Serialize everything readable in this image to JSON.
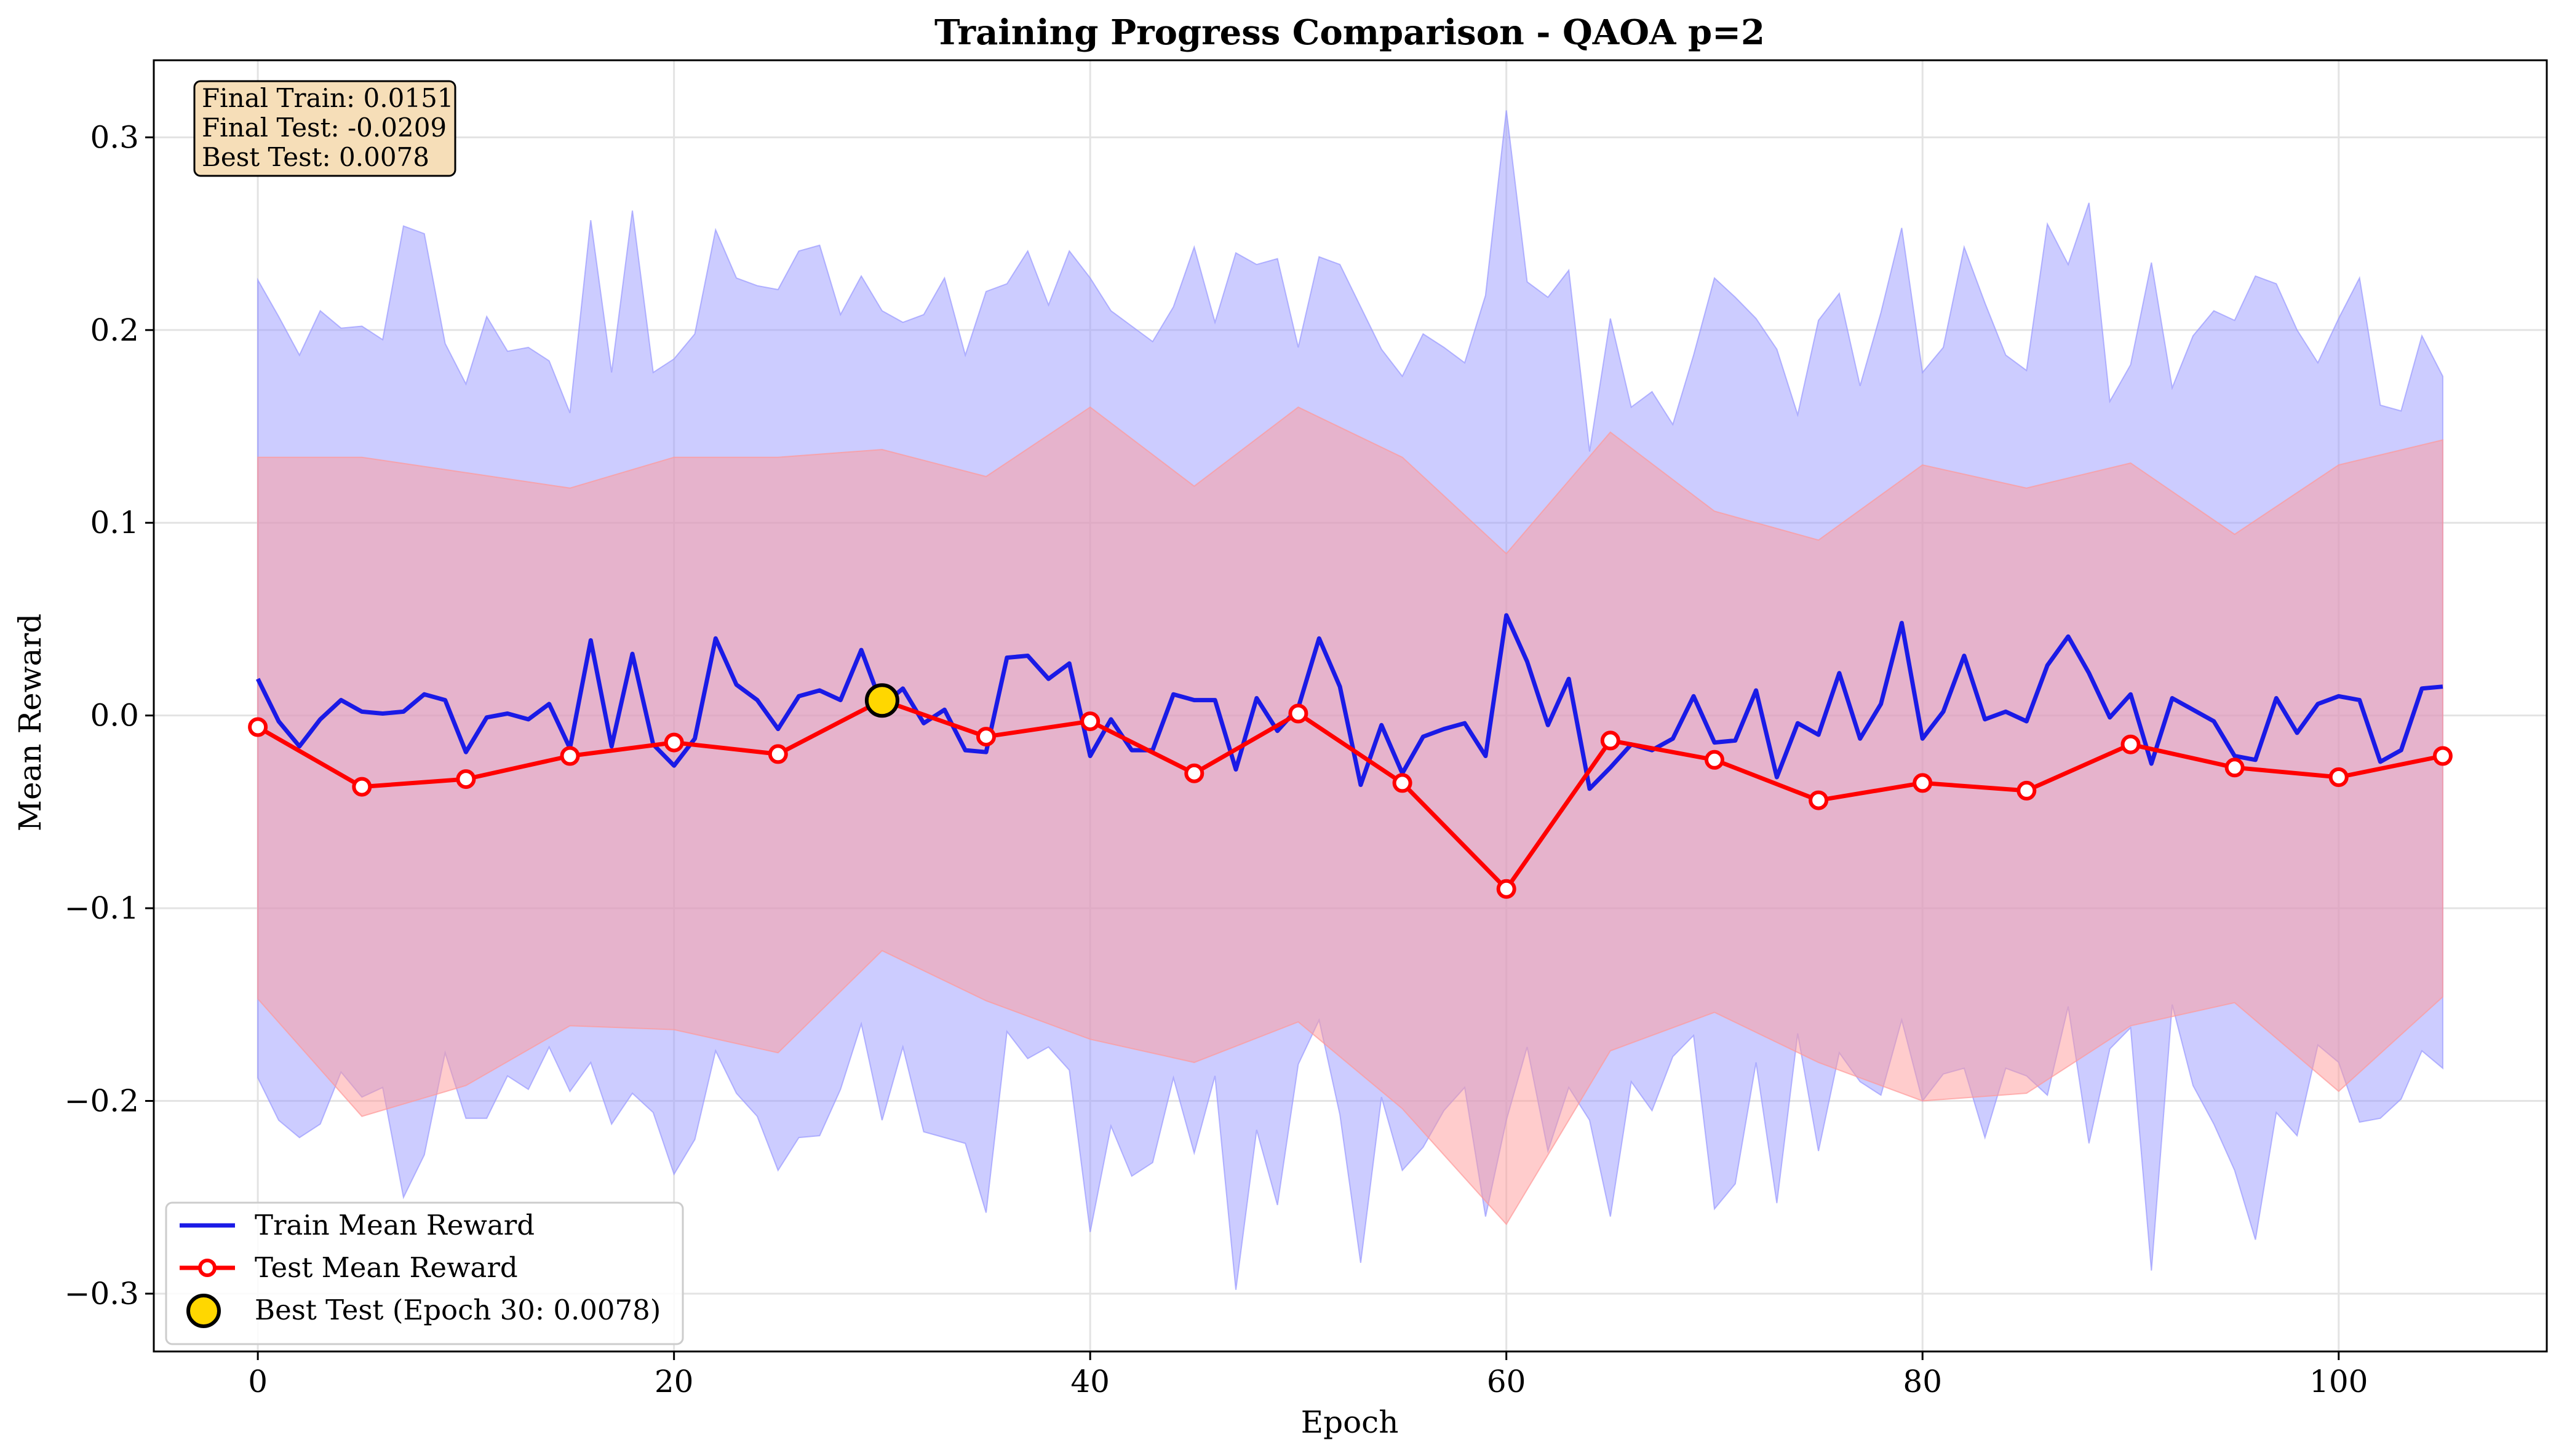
{
  "chart_data": {
    "type": "line",
    "title": "Training Progress Comparison - QAOA p=2",
    "xlabel": "Epoch",
    "ylabel": "Mean Reward",
    "xlim": [
      -5,
      110
    ],
    "ylim": [
      -0.33,
      0.34
    ],
    "xticks": [
      0,
      20,
      40,
      60,
      80,
      100
    ],
    "yticks": [
      -0.3,
      -0.2,
      -0.1,
      0.0,
      0.1,
      0.2,
      0.3
    ],
    "ytick_labels": [
      "−0.3",
      "−0.2",
      "−0.1",
      "0.0",
      "0.1",
      "0.2",
      "0.3"
    ],
    "grid": true,
    "legend_position": "lower-left",
    "colors": {
      "train": "#1a1ae6",
      "test": "#ff0000",
      "best": "#ffd700",
      "train_band": "#9999ff",
      "test_band": "#ff9999"
    },
    "series": [
      {
        "name": "Train Mean Reward",
        "x": [
          0,
          1,
          2,
          3,
          4,
          5,
          6,
          7,
          8,
          9,
          10,
          11,
          12,
          13,
          14,
          15,
          16,
          17,
          18,
          19,
          20,
          21,
          22,
          23,
          24,
          25,
          26,
          27,
          28,
          29,
          30,
          31,
          32,
          33,
          34,
          35,
          36,
          37,
          38,
          39,
          40,
          41,
          42,
          43,
          44,
          45,
          46,
          47,
          48,
          49,
          50,
          51,
          52,
          53,
          54,
          55,
          56,
          57,
          58,
          59,
          60,
          61,
          62,
          63,
          64,
          65,
          66,
          67,
          68,
          69,
          70,
          71,
          72,
          73,
          74,
          75,
          76,
          77,
          78,
          79,
          80,
          81,
          82,
          83,
          84,
          85,
          86,
          87,
          88,
          89,
          90,
          91,
          92,
          93,
          94,
          95,
          96,
          97,
          98,
          99,
          100,
          101,
          102,
          103,
          104,
          105
        ],
        "values": [
          0.019,
          -0.003,
          -0.016,
          -0.002,
          0.008,
          0.002,
          0.001,
          0.002,
          0.011,
          0.008,
          -0.019,
          -0.001,
          0.001,
          -0.002,
          0.006,
          -0.017,
          0.039,
          -0.016,
          0.032,
          -0.015,
          -0.026,
          -0.012,
          0.04,
          0.016,
          0.008,
          -0.007,
          0.01,
          0.013,
          0.008,
          0.034,
          0.005,
          0.014,
          -0.004,
          0.003,
          -0.018,
          -0.019,
          0.03,
          0.031,
          0.019,
          0.027,
          -0.021,
          -0.002,
          -0.018,
          -0.018,
          0.011,
          0.008,
          0.008,
          -0.028,
          0.009,
          -0.008,
          0.004,
          0.04,
          0.015,
          -0.036,
          -0.005,
          -0.03,
          -0.011,
          -0.007,
          -0.004,
          -0.021,
          0.052,
          0.028,
          -0.005,
          0.019,
          -0.038,
          -0.027,
          -0.015,
          -0.018,
          -0.012,
          0.01,
          -0.014,
          -0.013,
          0.013,
          -0.032,
          -0.004,
          -0.01,
          0.022,
          -0.012,
          0.006,
          0.048,
          -0.012,
          0.002,
          0.031,
          -0.002,
          0.002,
          -0.003,
          0.026,
          0.041,
          0.022,
          -0.001,
          0.011,
          -0.025,
          0.009,
          0.003,
          -0.003,
          -0.021,
          -0.023,
          0.009,
          -0.009,
          0.006,
          0.01,
          0.008,
          -0.024,
          -0.018,
          0.014,
          0.015
        ],
        "upper": [
          0.226,
          0.207,
          0.187,
          0.21,
          0.201,
          0.202,
          0.195,
          0.254,
          0.25,
          0.193,
          0.172,
          0.207,
          0.189,
          0.191,
          0.184,
          0.157,
          0.257,
          0.178,
          0.262,
          0.178,
          0.185,
          0.198,
          0.252,
          0.227,
          0.223,
          0.221,
          0.241,
          0.244,
          0.208,
          0.228,
          0.21,
          0.204,
          0.208,
          0.227,
          0.187,
          0.22,
          0.224,
          0.241,
          0.213,
          0.241,
          0.227,
          0.21,
          0.202,
          0.194,
          0.212,
          0.243,
          0.204,
          0.24,
          0.234,
          0.237,
          0.191,
          0.238,
          0.234,
          0.212,
          0.19,
          0.176,
          0.198,
          0.191,
          0.183,
          0.218,
          0.314,
          0.225,
          0.217,
          0.231,
          0.137,
          0.206,
          0.16,
          0.168,
          0.151,
          0.187,
          0.227,
          0.217,
          0.206,
          0.19,
          0.156,
          0.205,
          0.219,
          0.171,
          0.209,
          0.253,
          0.178,
          0.191,
          0.243,
          0.214,
          0.187,
          0.179,
          0.255,
          0.234,
          0.266,
          0.163,
          0.182,
          0.235,
          0.17,
          0.197,
          0.21,
          0.205,
          0.228,
          0.224,
          0.2,
          0.183,
          0.206,
          0.227,
          0.161,
          0.158,
          0.197,
          0.176
        ],
        "lower": [
          -0.188,
          -0.21,
          -0.219,
          -0.212,
          -0.185,
          -0.198,
          -0.193,
          -0.25,
          -0.228,
          -0.175,
          -0.209,
          -0.209,
          -0.187,
          -0.194,
          -0.172,
          -0.195,
          -0.18,
          -0.212,
          -0.196,
          -0.206,
          -0.238,
          -0.22,
          -0.174,
          -0.196,
          -0.208,
          -0.236,
          -0.219,
          -0.218,
          -0.194,
          -0.16,
          -0.21,
          -0.172,
          -0.216,
          -0.219,
          -0.222,
          -0.258,
          -0.164,
          -0.178,
          -0.172,
          -0.184,
          -0.268,
          -0.213,
          -0.239,
          -0.232,
          -0.188,
          -0.227,
          -0.187,
          -0.298,
          -0.215,
          -0.254,
          -0.181,
          -0.158,
          -0.207,
          -0.284,
          -0.198,
          -0.236,
          -0.224,
          -0.205,
          -0.193,
          -0.26,
          -0.21,
          -0.172,
          -0.226,
          -0.193,
          -0.21,
          -0.26,
          -0.19,
          -0.205,
          -0.177,
          -0.166,
          -0.256,
          -0.243,
          -0.18,
          -0.253,
          -0.165,
          -0.226,
          -0.175,
          -0.19,
          -0.197,
          -0.158,
          -0.2,
          -0.186,
          -0.183,
          -0.219,
          -0.183,
          -0.187,
          -0.197,
          -0.151,
          -0.222,
          -0.173,
          -0.162,
          -0.288,
          -0.15,
          -0.192,
          -0.212,
          -0.236,
          -0.272,
          -0.206,
          -0.218,
          -0.171,
          -0.18,
          -0.211,
          -0.209,
          -0.199,
          -0.174,
          -0.183
        ]
      },
      {
        "name": "Test Mean Reward",
        "x": [
          0,
          5,
          10,
          15,
          20,
          25,
          30,
          35,
          40,
          45,
          50,
          55,
          60,
          65,
          70,
          75,
          80,
          85,
          90,
          95,
          100,
          105
        ],
        "values": [
          -0.006,
          -0.037,
          -0.033,
          -0.021,
          -0.014,
          -0.02,
          0.008,
          -0.011,
          -0.003,
          -0.03,
          0.001,
          -0.035,
          -0.09,
          -0.013,
          -0.023,
          -0.044,
          -0.035,
          -0.039,
          -0.015,
          -0.027,
          -0.032,
          -0.021
        ],
        "upper": [
          0.134,
          0.134,
          0.126,
          0.118,
          0.134,
          0.134,
          0.138,
          0.124,
          0.16,
          0.119,
          0.16,
          0.134,
          0.084,
          0.147,
          0.106,
          0.091,
          0.13,
          0.118,
          0.131,
          0.094,
          0.13,
          0.143
        ],
        "lower": [
          -0.147,
          -0.208,
          -0.192,
          -0.161,
          -0.163,
          -0.175,
          -0.122,
          -0.148,
          -0.168,
          -0.18,
          -0.159,
          -0.204,
          -0.264,
          -0.174,
          -0.154,
          -0.18,
          -0.2,
          -0.196,
          -0.161,
          -0.149,
          -0.195,
          -0.146
        ]
      }
    ],
    "best_point": {
      "name": "Best Test (Epoch 30: 0.0078)",
      "x": 30,
      "y": 0.0078
    },
    "annotation": [
      "Final Train: 0.0151",
      "Final Test: -0.0209",
      "Best Test: 0.0078"
    ]
  }
}
